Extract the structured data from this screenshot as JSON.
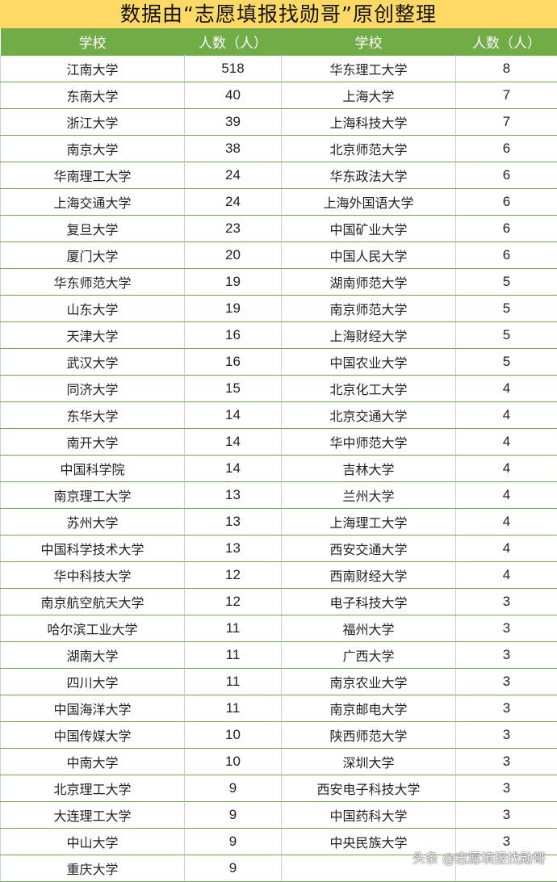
{
  "title": "数据由“志愿填报找勋哥”原创整理",
  "headers": [
    "学校",
    "人数（人）",
    "学校",
    "人数（人）"
  ],
  "colors": {
    "title_bg": "#FFD966",
    "header_bg": "#70AD47"
  },
  "left": [
    [
      "江南大学",
      "518"
    ],
    [
      "东南大学",
      "40"
    ],
    [
      "浙江大学",
      "39"
    ],
    [
      "南京大学",
      "38"
    ],
    [
      "华南理工大学",
      "24"
    ],
    [
      "上海交通大学",
      "24"
    ],
    [
      "复旦大学",
      "23"
    ],
    [
      "厦门大学",
      "20"
    ],
    [
      "华东师范大学",
      "19"
    ],
    [
      "山东大学",
      "19"
    ],
    [
      "天津大学",
      "16"
    ],
    [
      "武汉大学",
      "16"
    ],
    [
      "同济大学",
      "15"
    ],
    [
      "东华大学",
      "14"
    ],
    [
      "南开大学",
      "14"
    ],
    [
      "中国科学院",
      "14"
    ],
    [
      "南京理工大学",
      "13"
    ],
    [
      "苏州大学",
      "13"
    ],
    [
      "中国科学技术大学",
      "13"
    ],
    [
      "华中科技大学",
      "12"
    ],
    [
      "南京航空航天大学",
      "12"
    ],
    [
      "哈尔滨工业大学",
      "11"
    ],
    [
      "湖南大学",
      "11"
    ],
    [
      "四川大学",
      "11"
    ],
    [
      "中国海洋大学",
      "11"
    ],
    [
      "中国传媒大学",
      "10"
    ],
    [
      "中南大学",
      "10"
    ],
    [
      "北京理工大学",
      "9"
    ],
    [
      "大连理工大学",
      "9"
    ],
    [
      "中山大学",
      "9"
    ],
    [
      "重庆大学",
      "9"
    ]
  ],
  "right": [
    [
      "华东理工大学",
      "8"
    ],
    [
      "上海大学",
      "7"
    ],
    [
      "上海科技大学",
      "7"
    ],
    [
      "北京师范大学",
      "6"
    ],
    [
      "华东政法大学",
      "6"
    ],
    [
      "上海外国语大学",
      "6"
    ],
    [
      "中国矿业大学",
      "6"
    ],
    [
      "中国人民大学",
      "6"
    ],
    [
      "湖南师范大学",
      "5"
    ],
    [
      "南京师范大学",
      "5"
    ],
    [
      "上海财经大学",
      "5"
    ],
    [
      "中国农业大学",
      "5"
    ],
    [
      "北京化工大学",
      "4"
    ],
    [
      "北京交通大学",
      "4"
    ],
    [
      "华中师范大学",
      "4"
    ],
    [
      "吉林大学",
      "4"
    ],
    [
      "兰州大学",
      "4"
    ],
    [
      "上海理工大学",
      "4"
    ],
    [
      "西安交通大学",
      "4"
    ],
    [
      "西南财经大学",
      "4"
    ],
    [
      "电子科技大学",
      "3"
    ],
    [
      "福州大学",
      "3"
    ],
    [
      "广西大学",
      "3"
    ],
    [
      "南京农业大学",
      "3"
    ],
    [
      "南京邮电大学",
      "3"
    ],
    [
      "陕西师范大学",
      "3"
    ],
    [
      "深圳大学",
      "3"
    ],
    [
      "西安电子科技大学",
      "3"
    ],
    [
      "中国药科大学",
      "3"
    ],
    [
      "中央民族大学",
      "3"
    ],
    [
      "",
      ""
    ]
  ],
  "watermark": "头条 @志愿填报找勋哥"
}
